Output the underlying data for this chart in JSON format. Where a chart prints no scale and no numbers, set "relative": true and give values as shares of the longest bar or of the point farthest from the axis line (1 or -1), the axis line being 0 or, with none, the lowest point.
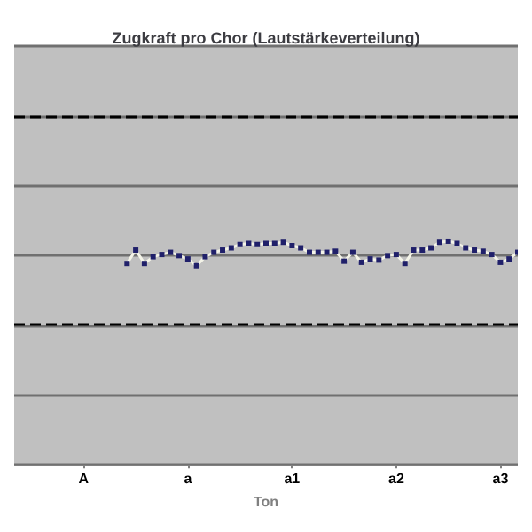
{
  "chart_data": {
    "type": "line",
    "title": "Zugkraft pro Chor (Lautstärkeverteilung)",
    "xlabel": "Ton",
    "relative": true,
    "grid": "y",
    "marker": "square",
    "categories": [
      null,
      null,
      null,
      null,
      null,
      null,
      null,
      null,
      "A",
      null,
      null,
      null,
      null,
      null,
      null,
      null,
      null,
      null,
      null,
      null,
      "a",
      null,
      null,
      null,
      null,
      null,
      null,
      null,
      null,
      null,
      null,
      null,
      "a1",
      null,
      null,
      null,
      null,
      null,
      null,
      null,
      null,
      null,
      null,
      null,
      "a2",
      null,
      null,
      null,
      null,
      null,
      null,
      null,
      null,
      null,
      null,
      null,
      "a3",
      null,
      null
    ],
    "series": [
      {
        "color": "#20206a",
        "values": [
          null,
          null,
          null,
          null,
          null,
          null,
          null,
          null,
          null,
          null,
          null,
          null,
          null,
          0.9,
          0.96,
          0.9,
          0.93,
          0.94,
          0.95,
          0.935,
          0.92,
          0.89,
          0.93,
          0.95,
          0.96,
          0.97,
          0.985,
          0.99,
          0.985,
          0.99,
          0.99,
          0.995,
          0.98,
          0.97,
          0.95,
          0.95,
          0.95,
          0.955,
          0.91,
          0.95,
          0.905,
          0.92,
          0.915,
          0.935,
          0.94,
          0.9,
          0.96,
          0.96,
          0.97,
          0.995,
          1,
          0.99,
          0.97,
          0.96,
          0.955,
          0.94,
          0.905,
          0.92,
          0.95
        ]
      }
    ],
    "ref_lines": [
      {
        "axis": "y",
        "value": 1.56,
        "line_style": "dashed",
        "color": "#000000"
      },
      {
        "axis": "y",
        "value": 0.63,
        "line_style": "dashed",
        "color": "#000000"
      }
    ]
  }
}
